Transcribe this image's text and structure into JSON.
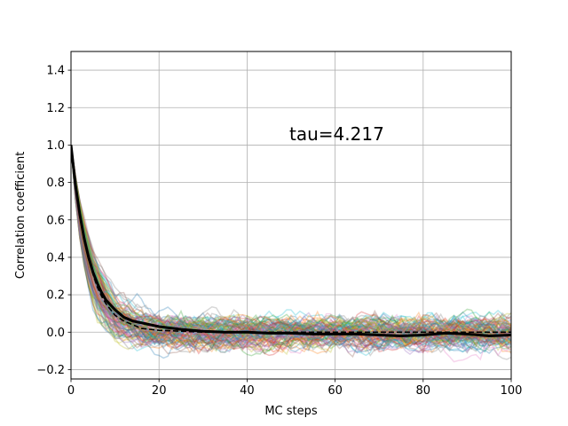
{
  "chart_data": {
    "type": "line",
    "title": "",
    "xlabel": "MC steps",
    "ylabel": "Correlation coefficient",
    "xlim": [
      0,
      100
    ],
    "ylim": [
      -0.25,
      1.5
    ],
    "xticks": [
      0,
      20,
      40,
      60,
      80,
      100
    ],
    "xtick_labels": [
      "0",
      "20",
      "40",
      "60",
      "80",
      "100"
    ],
    "yticks": [
      -0.2,
      0.0,
      0.2,
      0.4,
      0.6,
      0.8,
      1.0,
      1.2,
      1.4
    ],
    "ytick_labels": [
      "−0.2",
      "0.0",
      "0.2",
      "0.4",
      "0.6",
      "0.8",
      "1.0",
      "1.2",
      "1.4"
    ],
    "grid": true,
    "annotation": {
      "text": "tau=4.217",
      "x": 50,
      "y": 1.06
    },
    "tau": 4.217,
    "num_individual_series": 100,
    "individual_series_alpha": 0.3,
    "palette": [
      "#1f77b4",
      "#ff7f0e",
      "#2ca02c",
      "#d62728",
      "#9467bd",
      "#8c564b",
      "#e377c2",
      "#7f7f7f",
      "#bcbd22",
      "#17becf"
    ],
    "series": [
      {
        "style": "solid",
        "color": "#000000",
        "x": [
          0,
          1,
          2,
          3,
          4,
          5,
          6,
          7,
          8,
          10,
          12,
          14,
          16,
          18,
          20,
          25,
          30,
          35,
          40,
          45,
          50,
          55,
          60,
          65,
          70,
          75,
          80,
          85,
          90,
          95,
          100
        ],
        "y": [
          1.0,
          0.79,
          0.63,
          0.5,
          0.4,
          0.32,
          0.26,
          0.21,
          0.17,
          0.12,
          0.08,
          0.06,
          0.05,
          0.04,
          0.03,
          0.015,
          0.005,
          0.0,
          0.0,
          -0.005,
          -0.005,
          -0.01,
          -0.01,
          -0.01,
          -0.015,
          -0.02,
          -0.015,
          -0.005,
          -0.01,
          -0.02,
          -0.015
        ]
      },
      {
        "style": "dashed",
        "color": "#000000",
        "x": [
          0,
          1,
          2,
          3,
          4,
          5,
          6,
          7,
          8,
          10,
          12,
          14,
          16,
          18,
          20,
          25,
          30,
          35,
          40,
          45,
          50,
          55,
          60,
          65,
          70,
          75,
          80,
          85,
          90,
          95,
          100
        ],
        "y": [
          1.0,
          0.79,
          0.62,
          0.49,
          0.39,
          0.31,
          0.24,
          0.19,
          0.15,
          0.09,
          0.06,
          0.04,
          0.02,
          0.015,
          0.01,
          0.005,
          0.0,
          0.0,
          0.0,
          0.0,
          0.0,
          0.0,
          0.0,
          0.0,
          0.0,
          0.0,
          0.0,
          0.0,
          0.0,
          0.0,
          0.0
        ]
      }
    ]
  }
}
